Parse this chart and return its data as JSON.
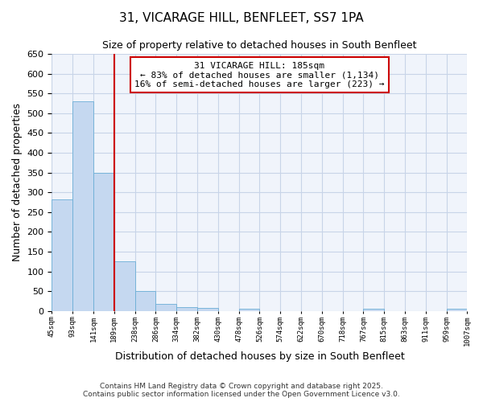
{
  "title": "31, VICARAGE HILL, BENFLEET, SS7 1PA",
  "subtitle": "Size of property relative to detached houses in South Benfleet",
  "bar_values": [
    283,
    530,
    350,
    125,
    50,
    18,
    10,
    7,
    0,
    6,
    0,
    0,
    0,
    0,
    0,
    5,
    0,
    0,
    0,
    5
  ],
  "bin_labels": [
    "45sqm",
    "93sqm",
    "141sqm",
    "189sqm",
    "238sqm",
    "286sqm",
    "334sqm",
    "382sqm",
    "430sqm",
    "478sqm",
    "526sqm",
    "574sqm",
    "622sqm",
    "670sqm",
    "718sqm",
    "767sqm",
    "815sqm",
    "863sqm",
    "911sqm",
    "959sqm",
    "1007sqm"
  ],
  "xlabel": "Distribution of detached houses by size in South Benfleet",
  "ylabel": "Number of detached properties",
  "ylim": [
    0,
    650
  ],
  "yticks": [
    0,
    50,
    100,
    150,
    200,
    250,
    300,
    350,
    400,
    450,
    500,
    550,
    600,
    650
  ],
  "bar_color": "#c5d8f0",
  "bar_edge_color": "#6baed6",
  "vline_x": 3,
  "vline_color": "#cc0000",
  "annotation_text": "31 VICARAGE HILL: 185sqm\n← 83% of detached houses are smaller (1,134)\n16% of semi-detached houses are larger (223) →",
  "annotation_box_color": "#cc0000",
  "fig_bg_color": "#ffffff",
  "ax_bg_color": "#f0f4fb",
  "grid_color": "#c8d4e8",
  "footer_line1": "Contains HM Land Registry data © Crown copyright and database right 2025.",
  "footer_line2": "Contains public sector information licensed under the Open Government Licence v3.0."
}
